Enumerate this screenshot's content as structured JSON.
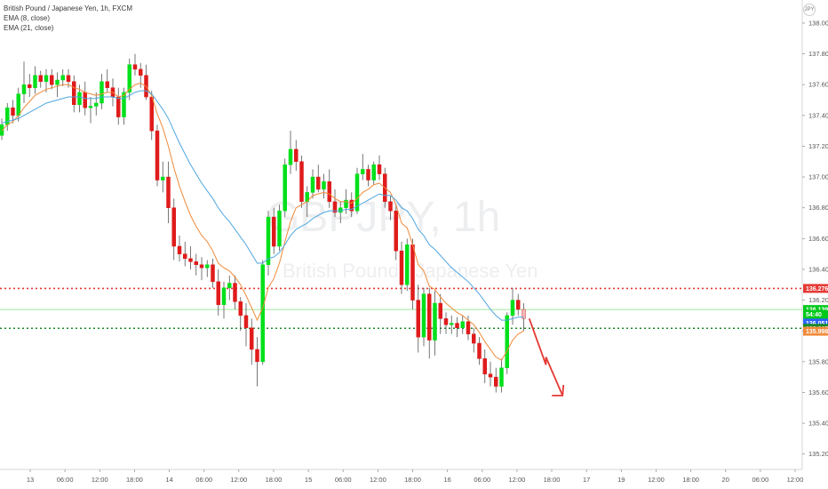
{
  "legend": {
    "symbol": "British Pound / Japanese Yen, 1h, FXCM",
    "ema_fast": "EMA (8, close)",
    "ema_slow": "EMA (21, close)"
  },
  "currency_badge": "JPY",
  "watermark": {
    "ticker": "GBPJPY, 1h",
    "name": "British Pound / Japanese Yen"
  },
  "colors": {
    "up": "#00e01b",
    "down": "#e01b1b",
    "ema_fast": "#f08a3a",
    "ema_slow": "#4ea6e0",
    "resistance": "#e53935",
    "support": "#1b8a2a",
    "arrow": "#e53935"
  },
  "chart_data": {
    "type": "candlestick",
    "title": "British Pound / Japanese Yen, 1h, FXCM",
    "ylim": [
      135.1,
      138.15
    ],
    "y_ticks": [
      "138.000",
      "137.800",
      "137.600",
      "137.400",
      "137.200",
      "137.000",
      "136.800",
      "136.600",
      "136.400",
      "136.200",
      "136.000",
      "135.800",
      "135.600",
      "135.400",
      "135.200"
    ],
    "x_ticks": [
      "13",
      "06:00",
      "12:00",
      "18:00",
      "14",
      "06:00",
      "12:00",
      "18:00",
      "15",
      "06:00",
      "12:00",
      "18:00",
      "16",
      "06:00",
      "12:00",
      "18:00",
      "17",
      "19",
      "12:00",
      "18:00",
      "20",
      "06:00",
      "12:00"
    ],
    "ohlc": [
      [
        137.27,
        137.38,
        137.24,
        137.34
      ],
      [
        137.34,
        137.48,
        137.3,
        137.45
      ],
      [
        137.45,
        137.5,
        137.35,
        137.4
      ],
      [
        137.4,
        137.58,
        137.36,
        137.54
      ],
      [
        137.54,
        137.75,
        137.48,
        137.6
      ],
      [
        137.6,
        137.67,
        137.52,
        137.58
      ],
      [
        137.58,
        137.72,
        137.54,
        137.66
      ],
      [
        137.66,
        137.69,
        137.58,
        137.62
      ],
      [
        137.62,
        137.7,
        137.55,
        137.66
      ],
      [
        137.66,
        137.7,
        137.57,
        137.6
      ],
      [
        137.6,
        137.68,
        137.52,
        137.63
      ],
      [
        137.63,
        137.7,
        137.59,
        137.66
      ],
      [
        137.66,
        137.7,
        137.58,
        137.62
      ],
      [
        137.62,
        137.66,
        137.42,
        137.47
      ],
      [
        137.47,
        137.6,
        137.42,
        137.55
      ],
      [
        137.55,
        137.62,
        137.4,
        137.45
      ],
      [
        137.45,
        137.52,
        137.35,
        137.46
      ],
      [
        137.46,
        137.55,
        137.4,
        137.48
      ],
      [
        137.48,
        137.67,
        137.44,
        137.62
      ],
      [
        137.62,
        137.7,
        137.55,
        137.58
      ],
      [
        137.58,
        137.64,
        137.46,
        137.52
      ],
      [
        137.52,
        137.58,
        137.34,
        137.39
      ],
      [
        137.39,
        137.58,
        137.34,
        137.55
      ],
      [
        137.55,
        137.77,
        137.5,
        137.73
      ],
      [
        137.73,
        137.8,
        137.66,
        137.7
      ],
      [
        137.7,
        137.74,
        137.58,
        137.66
      ],
      [
        137.66,
        137.73,
        137.5,
        137.52
      ],
      [
        137.52,
        137.56,
        137.24,
        137.3
      ],
      [
        137.3,
        137.34,
        136.94,
        136.98
      ],
      [
        136.98,
        137.1,
        136.9,
        137.0
      ],
      [
        137.0,
        137.1,
        136.7,
        136.8
      ],
      [
        136.8,
        136.86,
        136.46,
        136.55
      ],
      [
        136.55,
        136.62,
        136.45,
        136.5
      ],
      [
        136.5,
        136.58,
        136.42,
        136.47
      ],
      [
        136.47,
        136.55,
        136.4,
        136.45
      ],
      [
        136.45,
        136.5,
        136.36,
        136.43
      ],
      [
        136.43,
        136.48,
        136.33,
        136.41
      ],
      [
        136.41,
        136.46,
        136.35,
        136.43
      ],
      [
        136.43,
        136.47,
        136.28,
        136.32
      ],
      [
        136.32,
        136.4,
        136.1,
        136.17
      ],
      [
        136.17,
        136.32,
        136.08,
        136.28
      ],
      [
        136.28,
        136.36,
        136.2,
        136.31
      ],
      [
        136.31,
        136.36,
        136.14,
        136.19
      ],
      [
        136.19,
        136.22,
        136.0,
        136.1
      ],
      [
        136.1,
        136.18,
        135.9,
        136.02
      ],
      [
        136.02,
        136.08,
        135.78,
        135.88
      ],
      [
        135.88,
        135.96,
        135.64,
        135.8
      ],
      [
        135.8,
        136.46,
        135.78,
        136.43
      ],
      [
        136.43,
        136.78,
        136.36,
        136.74
      ],
      [
        136.74,
        136.8,
        136.5,
        136.55
      ],
      [
        136.55,
        136.82,
        136.52,
        136.78
      ],
      [
        136.78,
        137.12,
        136.74,
        137.08
      ],
      [
        137.08,
        137.3,
        137.02,
        137.18
      ],
      [
        137.18,
        137.24,
        137.04,
        137.1
      ],
      [
        137.1,
        137.14,
        136.8,
        136.84
      ],
      [
        136.84,
        136.94,
        136.74,
        136.9
      ],
      [
        136.9,
        137.05,
        136.86,
        137.0
      ],
      [
        137.0,
        137.08,
        136.9,
        136.92
      ],
      [
        136.92,
        137.02,
        136.86,
        136.97
      ],
      [
        136.97,
        137.05,
        136.8,
        136.84
      ],
      [
        136.84,
        136.92,
        136.74,
        136.77
      ],
      [
        136.77,
        136.84,
        136.7,
        136.8
      ],
      [
        136.8,
        136.92,
        136.76,
        136.85
      ],
      [
        136.85,
        136.9,
        136.74,
        136.78
      ],
      [
        136.78,
        137.06,
        136.76,
        137.02
      ],
      [
        137.02,
        137.15,
        136.98,
        137.05
      ],
      [
        137.05,
        137.08,
        136.94,
        136.98
      ],
      [
        136.98,
        137.1,
        136.95,
        137.08
      ],
      [
        137.08,
        137.14,
        136.98,
        137.02
      ],
      [
        137.02,
        137.06,
        136.8,
        136.84
      ],
      [
        136.84,
        136.88,
        136.72,
        136.78
      ],
      [
        136.78,
        136.82,
        136.46,
        136.52
      ],
      [
        136.52,
        136.58,
        136.24,
        136.3
      ],
      [
        136.3,
        136.6,
        136.26,
        136.56
      ],
      [
        136.56,
        136.6,
        136.14,
        136.2
      ],
      [
        136.2,
        136.3,
        135.86,
        135.96
      ],
      [
        135.96,
        136.28,
        135.9,
        136.24
      ],
      [
        136.24,
        136.28,
        135.82,
        135.94
      ],
      [
        135.94,
        136.26,
        135.84,
        136.18
      ],
      [
        136.18,
        136.24,
        135.98,
        136.08
      ],
      [
        136.08,
        136.12,
        135.98,
        136.04
      ],
      [
        136.04,
        136.1,
        135.98,
        136.05
      ],
      [
        136.05,
        136.09,
        135.96,
        136.02
      ],
      [
        136.02,
        136.1,
        135.98,
        136.06
      ],
      [
        136.06,
        136.1,
        135.94,
        135.98
      ],
      [
        135.98,
        136.02,
        135.86,
        135.92
      ],
      [
        135.92,
        135.96,
        135.78,
        135.82
      ],
      [
        135.82,
        135.88,
        135.66,
        135.72
      ],
      [
        135.72,
        135.8,
        135.64,
        135.7
      ],
      [
        135.7,
        135.76,
        135.6,
        135.64
      ],
      [
        135.64,
        135.82,
        135.6,
        135.76
      ],
      [
        135.76,
        136.12,
        135.72,
        136.1
      ],
      [
        136.1,
        136.28,
        136.04,
        136.2
      ],
      [
        136.2,
        136.24,
        136.1,
        136.14
      ],
      [
        136.14,
        136.18,
        136.0,
        136.08
      ]
    ],
    "series": [
      {
        "name": "EMA (8, close)",
        "values": [
          137.3,
          137.34,
          137.36,
          137.4,
          137.45,
          137.49,
          137.53,
          137.55,
          137.57,
          137.58,
          137.59,
          137.6,
          137.6,
          137.58,
          137.57,
          137.55,
          137.54,
          137.53,
          137.54,
          137.55,
          137.55,
          137.52,
          137.53,
          137.57,
          137.6,
          137.61,
          137.59,
          137.53,
          137.41,
          137.32,
          137.2,
          137.06,
          136.94,
          136.84,
          136.75,
          136.68,
          136.62,
          136.58,
          136.52,
          136.44,
          136.41,
          136.39,
          136.35,
          136.3,
          136.23,
          136.15,
          136.07,
          136.15,
          136.28,
          136.34,
          136.44,
          136.58,
          136.71,
          136.8,
          136.82,
          136.84,
          136.88,
          136.89,
          136.9,
          136.89,
          136.86,
          136.84,
          136.84,
          136.83,
          136.86,
          136.9,
          136.92,
          136.95,
          136.96,
          136.93,
          136.9,
          136.82,
          136.7,
          136.67,
          136.56,
          136.43,
          136.39,
          136.29,
          136.27,
          136.22,
          136.18,
          136.15,
          136.12,
          136.1,
          136.07,
          136.04,
          135.99,
          135.93,
          135.88,
          135.83,
          135.81,
          135.87,
          135.94,
          135.98,
          136.0
        ]
      },
      {
        "name": "EMA (21, close)",
        "values": [
          137.35,
          137.36,
          137.37,
          137.38,
          137.4,
          137.42,
          137.44,
          137.46,
          137.48,
          137.49,
          137.5,
          137.51,
          137.52,
          137.52,
          137.52,
          137.51,
          137.51,
          137.51,
          137.52,
          137.52,
          137.52,
          137.51,
          137.51,
          137.53,
          137.55,
          137.56,
          137.56,
          137.54,
          137.49,
          137.44,
          137.38,
          137.3,
          137.22,
          137.15,
          137.08,
          137.02,
          136.96,
          136.91,
          136.86,
          136.8,
          136.75,
          136.71,
          136.66,
          136.61,
          136.56,
          136.5,
          136.44,
          136.44,
          136.47,
          136.48,
          136.51,
          136.56,
          136.62,
          136.66,
          136.68,
          136.7,
          136.73,
          136.75,
          136.77,
          136.78,
          136.78,
          136.78,
          136.79,
          136.79,
          136.81,
          136.83,
          136.85,
          136.87,
          136.89,
          136.88,
          136.88,
          136.85,
          136.8,
          136.78,
          136.73,
          136.66,
          136.62,
          136.56,
          136.53,
          136.49,
          136.45,
          136.41,
          136.38,
          136.35,
          136.32,
          136.28,
          136.24,
          136.19,
          136.14,
          136.1,
          136.07,
          136.07,
          136.08,
          136.09,
          136.09
        ]
      }
    ],
    "levels": {
      "resistance": {
        "value": 136.276,
        "label": "136.276"
      },
      "marker_line": {
        "value": 136.139,
        "label": "136.139"
      },
      "support": {
        "value": 136.017,
        "label": "136.017"
      }
    },
    "price_tags": [
      {
        "value": 136.139,
        "label": "136.139",
        "color": "#00c91a"
      },
      {
        "value": 136.107,
        "label": "54:40",
        "color": "#00c91a"
      },
      {
        "value": 136.051,
        "label": "136.051",
        "color": "#2962ff"
      },
      {
        "value": 136.017,
        "label": "136.017",
        "color": "#1b8a2a"
      },
      {
        "value": 135.998,
        "label": "135.998",
        "color": "#f08a3a"
      },
      {
        "value": 136.276,
        "label": "136.276",
        "color": "#e53935"
      }
    ],
    "projection": [
      [
        136.08,
        1
      ],
      [
        135.78,
        4
      ],
      [
        135.83,
        4
      ],
      [
        135.58,
        7
      ]
    ]
  }
}
